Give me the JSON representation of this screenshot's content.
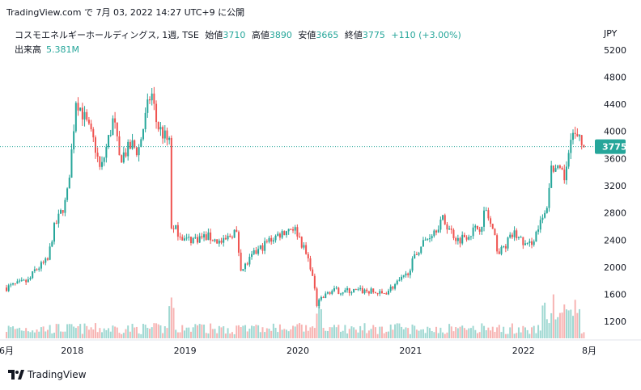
{
  "header": {
    "source": "TradingView.com",
    "published": "で 7月 03, 2022 14:27 UTC+9 に公開"
  },
  "legend": {
    "symbol": "コスモエネルギーホールディングス, 1週, TSE",
    "open_label": "始値",
    "open": "3710",
    "high_label": "高値",
    "high": "3890",
    "low_label": "安値",
    "low": "3665",
    "close_label": "終値",
    "close": "3775",
    "change": "+110 (+3.00%)",
    "volume_label": "出来高",
    "volume": "5.381M"
  },
  "footer": {
    "brand": "TradingView"
  },
  "colors": {
    "up": "#26a69a",
    "down": "#ef5350",
    "vol_up": "#9fd8d2",
    "vol_down": "#f7b4b3",
    "axis": "#131722",
    "last_price_bg": "#26a69a"
  },
  "chart_data": {
    "type": "candlestick",
    "currency": "JPY",
    "yaxis_ticks": [
      "5200",
      "4800",
      "4400",
      "4000",
      "3600",
      "3200",
      "2800",
      "2400",
      "2000",
      "1600",
      "1200"
    ],
    "ylim": [
      1000,
      5400
    ],
    "xaxis_ticks": [
      "6月",
      "2018",
      "2019",
      "2020",
      "2021",
      "2022",
      "8月"
    ],
    "last_price": 3775,
    "x_start": "2017-06",
    "x_end": "2022-08",
    "close_path": [
      [
        "2017-06",
        1700
      ],
      [
        "2017-08",
        1800
      ],
      [
        "2017-09",
        1950
      ],
      [
        "2017-10",
        2100
      ],
      [
        "2017-11",
        2550
      ],
      [
        "2017-12",
        3000
      ],
      [
        "2018-01",
        3800
      ],
      [
        "2018-01",
        4500
      ],
      [
        "2018-02",
        4300
      ],
      [
        "2018-03",
        3800
      ],
      [
        "2018-04",
        3400
      ],
      [
        "2018-05",
        4200
      ],
      [
        "2018-06",
        3600
      ],
      [
        "2018-07",
        3800
      ],
      [
        "2018-08",
        3700
      ],
      [
        "2018-09",
        4600
      ],
      [
        "2018-10",
        4100
      ],
      [
        "2018-11",
        3800
      ],
      [
        "2018-11",
        2700
      ],
      [
        "2018-12",
        2500
      ],
      [
        "2019-01",
        2400
      ],
      [
        "2019-03",
        2450
      ],
      [
        "2019-05",
        2350
      ],
      [
        "2019-06",
        2550
      ],
      [
        "2019-07",
        1950
      ],
      [
        "2019-08",
        2200
      ],
      [
        "2019-10",
        2400
      ],
      [
        "2019-12",
        2600
      ],
      [
        "2020-01",
        2500
      ],
      [
        "2020-02",
        2000
      ],
      [
        "2020-03",
        1450
      ],
      [
        "2020-04",
        1650
      ],
      [
        "2020-06",
        1650
      ],
      [
        "2020-08",
        1650
      ],
      [
        "2020-10",
        1600
      ],
      [
        "2020-12",
        1850
      ],
      [
        "2021-02",
        2300
      ],
      [
        "2021-04",
        2700
      ],
      [
        "2021-06",
        2400
      ],
      [
        "2021-08",
        2600
      ],
      [
        "2021-09",
        2850
      ],
      [
        "2021-10",
        2200
      ],
      [
        "2021-12",
        2500
      ],
      [
        "2022-01",
        2300
      ],
      [
        "2022-02",
        2400
      ],
      [
        "2022-03",
        2800
      ],
      [
        "2022-04",
        3500
      ],
      [
        "2022-05",
        3300
      ],
      [
        "2022-06",
        4000
      ],
      [
        "2022-07",
        3775
      ]
    ],
    "volume_ticks_hint": "bars along bottom; spikes in 2018-11, 2020-03, 2022-03..06"
  }
}
